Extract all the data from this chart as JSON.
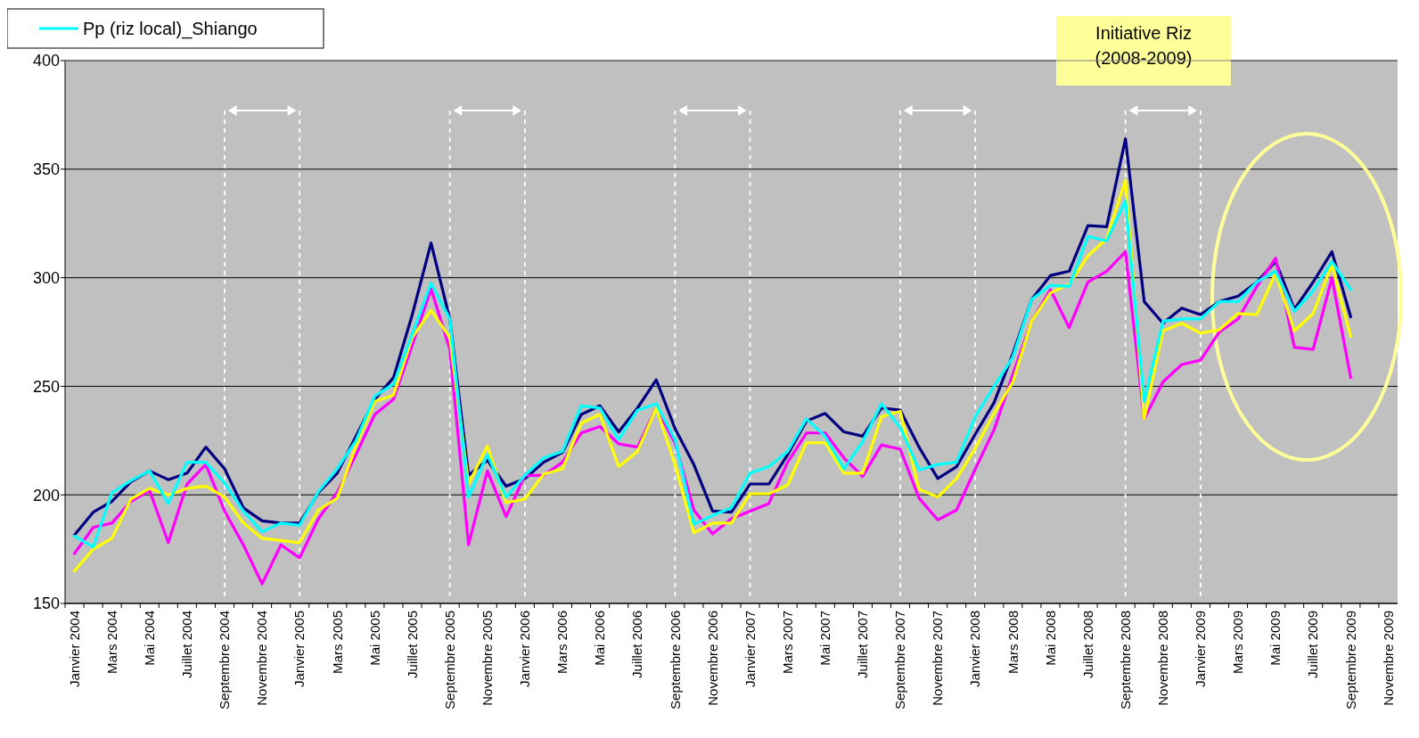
{
  "chart_data": {
    "type": "line",
    "categories": [
      "Janvier 2004",
      null,
      "Mars 2004",
      null,
      "Mai 2004",
      null,
      "Juillet 2004",
      null,
      "Septembre 2004",
      null,
      "Novembre 2004",
      null,
      "Janvier 2005",
      null,
      "Mars 2005",
      null,
      "Mai 2005",
      null,
      "Juillet 2005",
      null,
      "Septembre 2005",
      null,
      "Novembre 2005",
      null,
      "Janvier 2006",
      null,
      "Mars 2006",
      null,
      "Mai 2006",
      null,
      "Juillet 2006",
      null,
      "Septembre 2006",
      null,
      "Novembre 2006",
      null,
      "Janvier 2007",
      null,
      "Mars 2007",
      null,
      "Mai 2007",
      null,
      "Juillet 2007",
      null,
      "Septembre 2007",
      null,
      "Novembre 2007",
      null,
      "Janvier 2008",
      null,
      "Mars 2008",
      null,
      "Mai 2008",
      null,
      "Juillet 2008",
      null,
      "Septembre 2008",
      null,
      "Novembre 2008",
      null,
      "Janvier 2009",
      null,
      "Mars 2009",
      null,
      "Mai 2009",
      null,
      "Juillet 2009",
      null,
      "Septembre 2009",
      null,
      "Novembre 2009"
    ],
    "series": [
      {
        "color": "#000080",
        "values": [
          181.5,
          192,
          197,
          206,
          211,
          207,
          210,
          222,
          212,
          194,
          188,
          187,
          187,
          201,
          210,
          227,
          244,
          254,
          283,
          316,
          281,
          209,
          216,
          204,
          207.5,
          215,
          219.5,
          237,
          241,
          229,
          240,
          253,
          230.5,
          214,
          192.5,
          192,
          205,
          205,
          218.5,
          234,
          237.5,
          229,
          227,
          240,
          239,
          222,
          207.5,
          213,
          228,
          242.5,
          265,
          290,
          301,
          303,
          324,
          323.5,
          364,
          289,
          279,
          286,
          283,
          289,
          291.5,
          298,
          307.5,
          285.5,
          298,
          312,
          282,
          null,
          null
        ]
      },
      {
        "color": "#ff00ff",
        "values": [
          173,
          185,
          187,
          197,
          202,
          178,
          205,
          214,
          192.5,
          177,
          159,
          177,
          171,
          189,
          201,
          218.5,
          237,
          244,
          269,
          295,
          267,
          177,
          211,
          190,
          209,
          209,
          215,
          228.5,
          231.5,
          223.5,
          222,
          240,
          224,
          193,
          182,
          189,
          192.5,
          196,
          215,
          228.5,
          228.5,
          217,
          208.5,
          223,
          221,
          198.5,
          188.5,
          193,
          212,
          230,
          255.5,
          280,
          294.5,
          277,
          298,
          303,
          312,
          235,
          252,
          260,
          262,
          275,
          281,
          296,
          309,
          268,
          267,
          300,
          254,
          null,
          null
        ]
      },
      {
        "color": "#ffff00",
        "values": [
          165,
          175,
          180,
          198,
          203,
          200,
          203,
          204,
          199,
          187,
          180,
          179,
          178,
          193,
          198.5,
          222.5,
          243,
          246,
          272.5,
          285,
          272.5,
          205,
          222.5,
          196.5,
          198,
          209.5,
          212,
          233,
          237,
          213,
          220,
          240,
          214,
          182.5,
          187,
          187,
          200.5,
          200.5,
          204.5,
          224,
          224,
          210,
          210,
          236,
          238.5,
          202.5,
          199,
          207.5,
          221.5,
          237.5,
          252,
          280,
          293,
          297,
          310,
          318,
          345,
          235,
          275.5,
          279,
          274.5,
          276,
          283.5,
          283,
          302,
          275.5,
          283.5,
          306,
          273,
          null,
          null
        ]
      },
      {
        "name": "Pp (riz local)_Shiango",
        "color": "#00ffff",
        "values": [
          181,
          176,
          201,
          206.5,
          211,
          196,
          215,
          215,
          205.5,
          192.5,
          183,
          187,
          186,
          201.5,
          212,
          225,
          245.5,
          251,
          274,
          297.5,
          281,
          199,
          218.5,
          199,
          209,
          217,
          220,
          241,
          240,
          225.5,
          239,
          242,
          225.5,
          186.5,
          190.5,
          194,
          210,
          213,
          220,
          235,
          227,
          212,
          224.5,
          242,
          231,
          211.5,
          214,
          215,
          236,
          250,
          263.5,
          290,
          296.5,
          296,
          319,
          317,
          335.5,
          243,
          280,
          281,
          281,
          289,
          289,
          298,
          303,
          284.5,
          294,
          307.5,
          294.5,
          null,
          null
        ]
      }
    ],
    "ylim": [
      150,
      400
    ],
    "yticks": [
      150,
      200,
      250,
      300,
      350,
      400
    ],
    "grid": "y",
    "legend": "top left",
    "annotations": [
      "Initiative Riz (2008-2009)"
    ],
    "ref_lines": [
      {
        "axis": "x",
        "value": "Septembre 2004",
        "color": "#ffffff",
        "line_style": "dashed"
      },
      {
        "axis": "x",
        "value": "Janvier 2005",
        "color": "#ffffff",
        "line_style": "dashed"
      },
      {
        "axis": "x",
        "value": "Septembre 2005",
        "color": "#ffffff",
        "line_style": "dashed"
      },
      {
        "axis": "x",
        "value": "Janvier 2006",
        "color": "#ffffff",
        "line_style": "dashed"
      },
      {
        "axis": "x",
        "value": "Septembre 2006",
        "color": "#ffffff",
        "line_style": "dashed"
      },
      {
        "axis": "x",
        "value": "Janvier 2007",
        "color": "#ffffff",
        "line_style": "dashed"
      },
      {
        "axis": "x",
        "value": "Septembre 2007",
        "color": "#ffffff",
        "line_style": "dashed"
      },
      {
        "axis": "x",
        "value": "Janvier 2008",
        "color": "#ffffff",
        "line_style": "dashed"
      },
      {
        "axis": "x",
        "value": "Septembre 2008",
        "color": "#ffffff",
        "line_style": "dashed"
      },
      {
        "axis": "x",
        "value": "Janvier 2009",
        "color": "#ffffff",
        "line_style": "dashed"
      }
    ]
  }
}
